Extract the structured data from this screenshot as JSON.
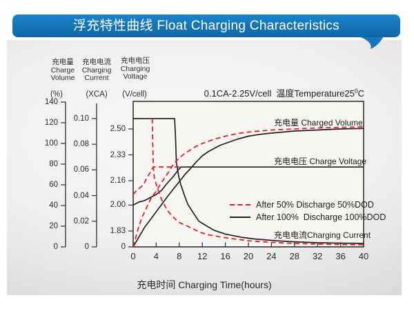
{
  "banner": {
    "title": "浮充特性曲线 Float Charging Characteristics",
    "color": "#1577bd"
  },
  "chart_data": {
    "type": "line",
    "title": "浮充特性曲线 Float Charging Characteristics",
    "condition": {
      "text": "0.1CA-2.25V/cell  温度Temperature25",
      "degree": "0",
      "unit": "C"
    },
    "grid": false,
    "legend_position": "inside-right",
    "x_axis": {
      "label": "充电时间 Charging Time(hours)",
      "range": [
        0,
        40
      ],
      "ticks": [
        0,
        4,
        8,
        12,
        16,
        20,
        24,
        28,
        32,
        36,
        40
      ]
    },
    "y_axes": {
      "percent": {
        "title_zh": "充电量",
        "title_en_1": "Charge",
        "title_en_2": "Volume",
        "unit": "(%)",
        "range": [
          0,
          140
        ],
        "ticks": [
          {
            "v": 140,
            "label": "140"
          },
          {
            "v": 120,
            "label": "120"
          },
          {
            "v": 100,
            "label": "100"
          },
          {
            "v": 80,
            "label": "80"
          },
          {
            "v": 60,
            "label": "60"
          },
          {
            "v": 40,
            "label": "40"
          },
          {
            "v": 20,
            "label": "20"
          },
          {
            "v": 0,
            "label": "0"
          }
        ]
      },
      "xca": {
        "title_zh": "充电电流",
        "title_en_1": "Charging",
        "title_en_2": "Current",
        "unit": "(XCA)",
        "range": [
          0,
          0.1
        ],
        "ticks": [
          {
            "v": 0.1,
            "label": "0.10"
          },
          {
            "v": 0.08,
            "label": "0.08"
          },
          {
            "v": 0.06,
            "label": "0.06"
          },
          {
            "v": 0.04,
            "label": "0.04"
          },
          {
            "v": 0.02,
            "label": "0.02"
          },
          {
            "v": 0,
            "label": "0"
          }
        ]
      },
      "vcell": {
        "title_zh": "充电电压",
        "title_en_1": "Charging",
        "title_en_2": "Voltage",
        "unit": "(V/cell)",
        "range": [
          1.83,
          2.5
        ],
        "broken_axis": true,
        "ticks": [
          {
            "v": 2.5,
            "label": "2.50"
          },
          {
            "v": 2.33,
            "label": "2.33"
          },
          {
            "v": 2.16,
            "label": "2.16"
          },
          {
            "v": 2.0,
            "label": "2.00"
          },
          {
            "v": 1.83,
            "label": "1.83"
          },
          {
            "v": 0,
            "label": "0"
          }
        ]
      }
    },
    "curve_labels": {
      "volume": "充电量 Charged Volume",
      "voltage": "充电电压 Charge Voltage",
      "current": "充电电流Charging Current"
    },
    "legend": [
      {
        "label": "After 50% Discharge 50%DOD",
        "style": "dashed",
        "color": "#e81c24"
      },
      {
        "label": "After 100%  Discharge 100%DOD",
        "style": "solid",
        "color": "#231f20"
      }
    ],
    "series": [
      {
        "name": "charged_volume_100dod",
        "axis": "percent",
        "dashed": false,
        "color": "#231f20",
        "points": [
          [
            0,
            0
          ],
          [
            1,
            9.5
          ],
          [
            2,
            19
          ],
          [
            3,
            26.5
          ],
          [
            4,
            34
          ],
          [
            5,
            41.5
          ],
          [
            6,
            49
          ],
          [
            7,
            56
          ],
          [
            8,
            63
          ],
          [
            9,
            70
          ],
          [
            10,
            76
          ],
          [
            11,
            82.5
          ],
          [
            12,
            88
          ],
          [
            13,
            92
          ],
          [
            14,
            95
          ],
          [
            15,
            98
          ],
          [
            16,
            100
          ],
          [
            18,
            104
          ],
          [
            20,
            107
          ],
          [
            22,
            108.8
          ],
          [
            24,
            110
          ],
          [
            28,
            112
          ],
          [
            32,
            113
          ],
          [
            36,
            114
          ],
          [
            40,
            114.5
          ]
        ]
      },
      {
        "name": "charge_voltage_100dod",
        "axis": "vcell",
        "dashed": false,
        "color": "#231f20",
        "points": [
          [
            0,
            2.0
          ],
          [
            1,
            2.02
          ],
          [
            2,
            2.03
          ],
          [
            3,
            2.05
          ],
          [
            4,
            2.07
          ],
          [
            5,
            2.1
          ],
          [
            5.6,
            2.13
          ],
          [
            6.3,
            2.16
          ],
          [
            6.8,
            2.18
          ],
          [
            7.4,
            2.21
          ],
          [
            7.8,
            2.23
          ],
          [
            8.3,
            2.25
          ],
          [
            40,
            2.25
          ]
        ]
      },
      {
        "name": "charging_current_100dod",
        "axis": "xca",
        "dashed": false,
        "color": "#231f20",
        "points": [
          [
            0,
            0.1
          ],
          [
            7.2,
            0.1
          ],
          [
            7.35,
            0.085
          ],
          [
            7.5,
            0.066
          ],
          [
            7.9,
            0.055
          ],
          [
            8.3,
            0.048
          ],
          [
            9,
            0.039
          ],
          [
            9.5,
            0.033
          ],
          [
            10.5,
            0.026
          ],
          [
            11.4,
            0.02
          ],
          [
            12.5,
            0.017
          ],
          [
            14,
            0.013
          ],
          [
            16,
            0.01
          ],
          [
            18.8,
            0.0075
          ],
          [
            21,
            0.0062
          ],
          [
            24.8,
            0.0048
          ],
          [
            28,
            0.004
          ],
          [
            32,
            0.0032
          ],
          [
            36,
            0.0029
          ],
          [
            40,
            0.0027
          ]
        ]
      },
      {
        "name": "charged_volume_50dod",
        "axis": "percent",
        "dashed": true,
        "color": "#e81c24",
        "points": [
          [
            0,
            0
          ],
          [
            0.5,
            10
          ],
          [
            1,
            20
          ],
          [
            1.5,
            28
          ],
          [
            2,
            34
          ],
          [
            2.5,
            40
          ],
          [
            3,
            46
          ],
          [
            3.5,
            50
          ],
          [
            4,
            54
          ],
          [
            4.5,
            58.5
          ],
          [
            5,
            63
          ],
          [
            5.5,
            67
          ],
          [
            6,
            71
          ],
          [
            6.5,
            75.5
          ],
          [
            7,
            80
          ],
          [
            7.5,
            83
          ],
          [
            8,
            86
          ],
          [
            9,
            90.5
          ],
          [
            10,
            94
          ],
          [
            11,
            97.5
          ],
          [
            12,
            100
          ],
          [
            13,
            102
          ],
          [
            14,
            104
          ],
          [
            16,
            107
          ],
          [
            18,
            109.5
          ],
          [
            20,
            111
          ],
          [
            24,
            113
          ],
          [
            28,
            114
          ],
          [
            32,
            115
          ],
          [
            36,
            115.5
          ],
          [
            40,
            116
          ]
        ]
      },
      {
        "name": "charge_voltage_50dod",
        "axis": "vcell",
        "dashed": true,
        "color": "#e81c24",
        "points": [
          [
            0,
            2.07
          ],
          [
            0.7,
            2.1
          ],
          [
            1.4,
            2.12
          ],
          [
            2,
            2.15
          ],
          [
            2.4,
            2.18
          ],
          [
            2.9,
            2.21
          ],
          [
            3.3,
            2.24
          ],
          [
            3.6,
            2.25
          ],
          [
            8.3,
            2.25
          ]
        ]
      },
      {
        "name": "charging_current_50dod",
        "axis": "xca",
        "dashed": true,
        "color": "#e81c24",
        "points": [
          [
            3.3,
            0.1
          ],
          [
            3.4,
            0.08
          ],
          [
            3.5,
            0.062
          ],
          [
            3.7,
            0.053
          ],
          [
            4.2,
            0.046
          ],
          [
            5,
            0.036
          ],
          [
            6,
            0.028
          ],
          [
            7,
            0.023
          ],
          [
            8,
            0.019
          ],
          [
            10,
            0.015
          ],
          [
            11.5,
            0.0115
          ],
          [
            13,
            0.0095
          ],
          [
            15,
            0.0078
          ],
          [
            17,
            0.0065
          ],
          [
            20,
            0.0048
          ],
          [
            24,
            0.0035
          ],
          [
            28,
            0.0027
          ],
          [
            32,
            0.0022
          ],
          [
            36,
            0.0018
          ],
          [
            40,
            0.0016
          ]
        ]
      }
    ]
  }
}
